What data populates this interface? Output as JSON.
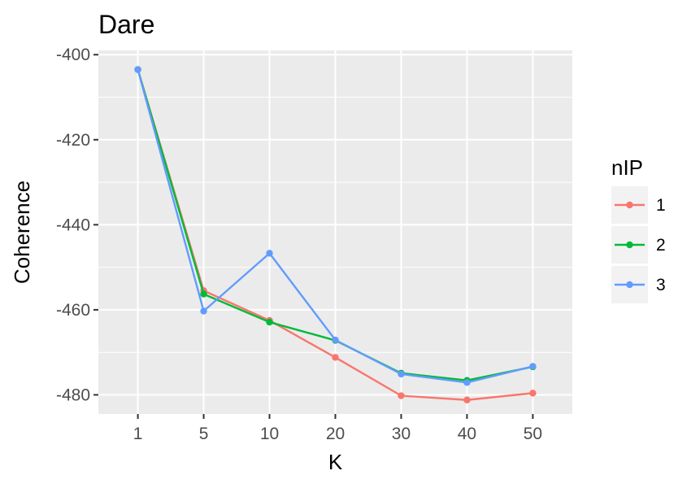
{
  "chart_data": {
    "type": "line",
    "title": "Dare",
    "xlabel": "K",
    "ylabel": "Coherence",
    "categories": [
      "1",
      "5",
      "10",
      "20",
      "30",
      "40",
      "50"
    ],
    "ylim": [
      -484.5,
      -399
    ],
    "yticks": [
      -400,
      -420,
      -440,
      -460,
      -480
    ],
    "ytick_labels": [
      "-400",
      "-420",
      "-440",
      "-460",
      "-480"
    ],
    "grid": true,
    "legend": {
      "title": "nIP",
      "position": "right"
    },
    "series": [
      {
        "name": "1",
        "color": "#F8766D",
        "values": [
          -403.5,
          -455.5,
          -462.5,
          -471.2,
          -480.2,
          -481.2,
          -479.6
        ]
      },
      {
        "name": "2",
        "color": "#00BA38",
        "values": [
          -403.5,
          -456.3,
          -462.9,
          -467.2,
          -474.9,
          -476.6,
          -473.4
        ]
      },
      {
        "name": "3",
        "color": "#619CFF",
        "values": [
          -403.5,
          -460.3,
          -446.7,
          -467.1,
          -475.1,
          -477.1,
          -473.3
        ]
      }
    ]
  }
}
